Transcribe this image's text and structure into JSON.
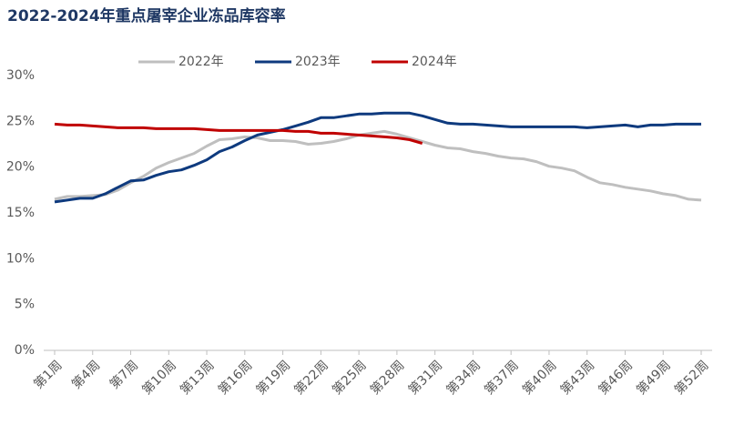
{
  "chart_data": {
    "type": "line",
    "title": "2022-2024年重点屠宰企业冻品库容率",
    "categories": [
      "第1周",
      null,
      null,
      "第4周",
      null,
      null,
      "第7周",
      null,
      null,
      "第10周",
      null,
      null,
      "第13周",
      null,
      null,
      "第16周",
      null,
      null,
      "第19周",
      null,
      null,
      "第22周",
      null,
      null,
      "第25周",
      null,
      null,
      "第28周",
      null,
      null,
      "第31周",
      null,
      null,
      "第34周",
      null,
      null,
      "第37周",
      null,
      null,
      "第40周",
      null,
      null,
      "第43周",
      null,
      null,
      "第46周",
      null,
      null,
      "第49周",
      null,
      null,
      "第52周"
    ],
    "series": [
      {
        "name": "2022年",
        "color": "#bfbfbf",
        "values": [
          16.5,
          16.8,
          16.8,
          16.9,
          17.0,
          17.5,
          18.3,
          19.0,
          19.9,
          20.5,
          21.0,
          21.5,
          22.3,
          23.0,
          23.1,
          23.3,
          23.2,
          22.9,
          22.9,
          22.8,
          22.5,
          22.6,
          22.8,
          23.1,
          23.5,
          23.7,
          23.9,
          23.6,
          23.2,
          22.8,
          22.4,
          22.1,
          22.0,
          21.7,
          21.5,
          21.2,
          21.0,
          20.9,
          20.6,
          20.1,
          19.9,
          19.6,
          18.9,
          18.3,
          18.1,
          17.8,
          17.6,
          17.4,
          17.1,
          16.9,
          16.5,
          16.4
        ]
      },
      {
        "name": "2023年",
        "color": "#0e3a7e",
        "values": [
          16.2,
          16.4,
          16.6,
          16.6,
          17.1,
          17.8,
          18.5,
          18.6,
          19.1,
          19.5,
          19.7,
          20.2,
          20.8,
          21.7,
          22.2,
          22.9,
          23.5,
          23.8,
          24.1,
          24.5,
          24.9,
          25.4,
          25.4,
          25.6,
          25.8,
          25.8,
          25.9,
          25.9,
          25.9,
          25.6,
          25.2,
          24.8,
          24.7,
          24.7,
          24.6,
          24.5,
          24.4,
          24.4,
          24.4,
          24.4,
          24.4,
          24.4,
          24.3,
          24.4,
          24.5,
          24.6,
          24.4,
          24.6,
          24.6,
          24.7,
          24.7,
          24.7
        ]
      },
      {
        "name": "2024年",
        "color": "#c00000",
        "values": [
          24.7,
          24.6,
          24.6,
          24.5,
          24.4,
          24.3,
          24.3,
          24.3,
          24.2,
          24.2,
          24.2,
          24.2,
          24.1,
          24.0,
          24.0,
          24.0,
          24.0,
          24.0,
          24.0,
          23.9,
          23.9,
          23.7,
          23.7,
          23.6,
          23.5,
          23.4,
          23.3,
          23.2,
          23.0,
          22.6,
          null,
          null,
          null,
          null,
          null,
          null,
          null,
          null,
          null,
          null,
          null,
          null,
          null,
          null,
          null,
          null,
          null,
          null,
          null,
          null,
          null,
          null
        ]
      }
    ],
    "ylim": [
      0,
      30
    ],
    "yticks": [
      {
        "value": 0,
        "label": "0%"
      },
      {
        "value": 5,
        "label": "5%"
      },
      {
        "value": 10,
        "label": "10%"
      },
      {
        "value": 15,
        "label": "15%"
      },
      {
        "value": 20,
        "label": "20%"
      },
      {
        "value": 25,
        "label": "25%"
      },
      {
        "value": 30,
        "label": "30%"
      }
    ],
    "grid": false,
    "legend": "top"
  }
}
